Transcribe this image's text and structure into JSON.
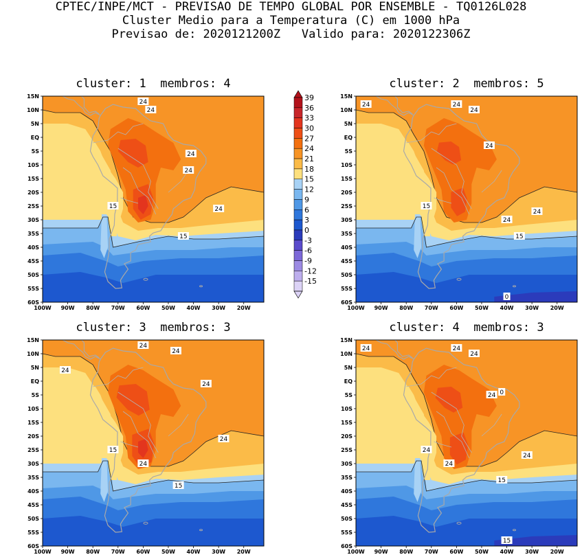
{
  "header": {
    "line1": "CPTEC/INPE/MCT - PREVISAO DE TEMPO GLOBAL POR ENSEMBLE - TQ0126L028",
    "line2": "Cluster Medio para a Temperatura (C) em 1000 hPa",
    "line3": "Previsao de: 2020121200Z   Valido para: 2020122306Z"
  },
  "panels": [
    {
      "title": "cluster: 1  membros: 4",
      "labels": [
        "24",
        "24",
        "24",
        "24",
        "24",
        "15",
        "15"
      ]
    },
    {
      "title": "cluster: 2  membros: 5",
      "labels": [
        "24",
        "24",
        "24",
        "24",
        "24",
        "24",
        "15",
        "15",
        "0"
      ]
    },
    {
      "title": "cluster: 3  membros: 3",
      "labels": [
        "24",
        "24",
        "24",
        "24",
        "24",
        "24",
        "15",
        "15"
      ]
    },
    {
      "title": "cluster: 4  membros: 3",
      "labels": [
        "24",
        "24",
        "24",
        "24",
        "24",
        "24",
        "24",
        "15",
        "15",
        "0"
      ]
    }
  ],
  "axes": {
    "lat_ticks": [
      "15N",
      "10N",
      "5N",
      "EQ",
      "5S",
      "10S",
      "15S",
      "20S",
      "25S",
      "30S",
      "35S",
      "40S",
      "45S",
      "50S",
      "55S",
      "60S"
    ],
    "lon_ticks": [
      "100W",
      "90W",
      "80W",
      "70W",
      "60W",
      "50W",
      "40W",
      "30W",
      "20W"
    ]
  },
  "colorbar": {
    "labels": [
      "39",
      "36",
      "33",
      "30",
      "27",
      "24",
      "21",
      "18",
      "15",
      "12",
      "9",
      "6",
      "3",
      "0",
      "-3",
      "-6",
      "-9",
      "-12",
      "-15"
    ],
    "colors": [
      "#b3121b",
      "#c8262a",
      "#e3351e",
      "#ee4f16",
      "#f3700f",
      "#f79426",
      "#fbbb48",
      "#fde07e",
      "#a8d2f5",
      "#7ab7ef",
      "#4f98e6",
      "#2f77dc",
      "#1d58cf",
      "#2b3bbb",
      "#5a4bcc",
      "#7c68d8",
      "#9c8ae3",
      "#bdaeed",
      "#dcd3f6"
    ]
  }
}
